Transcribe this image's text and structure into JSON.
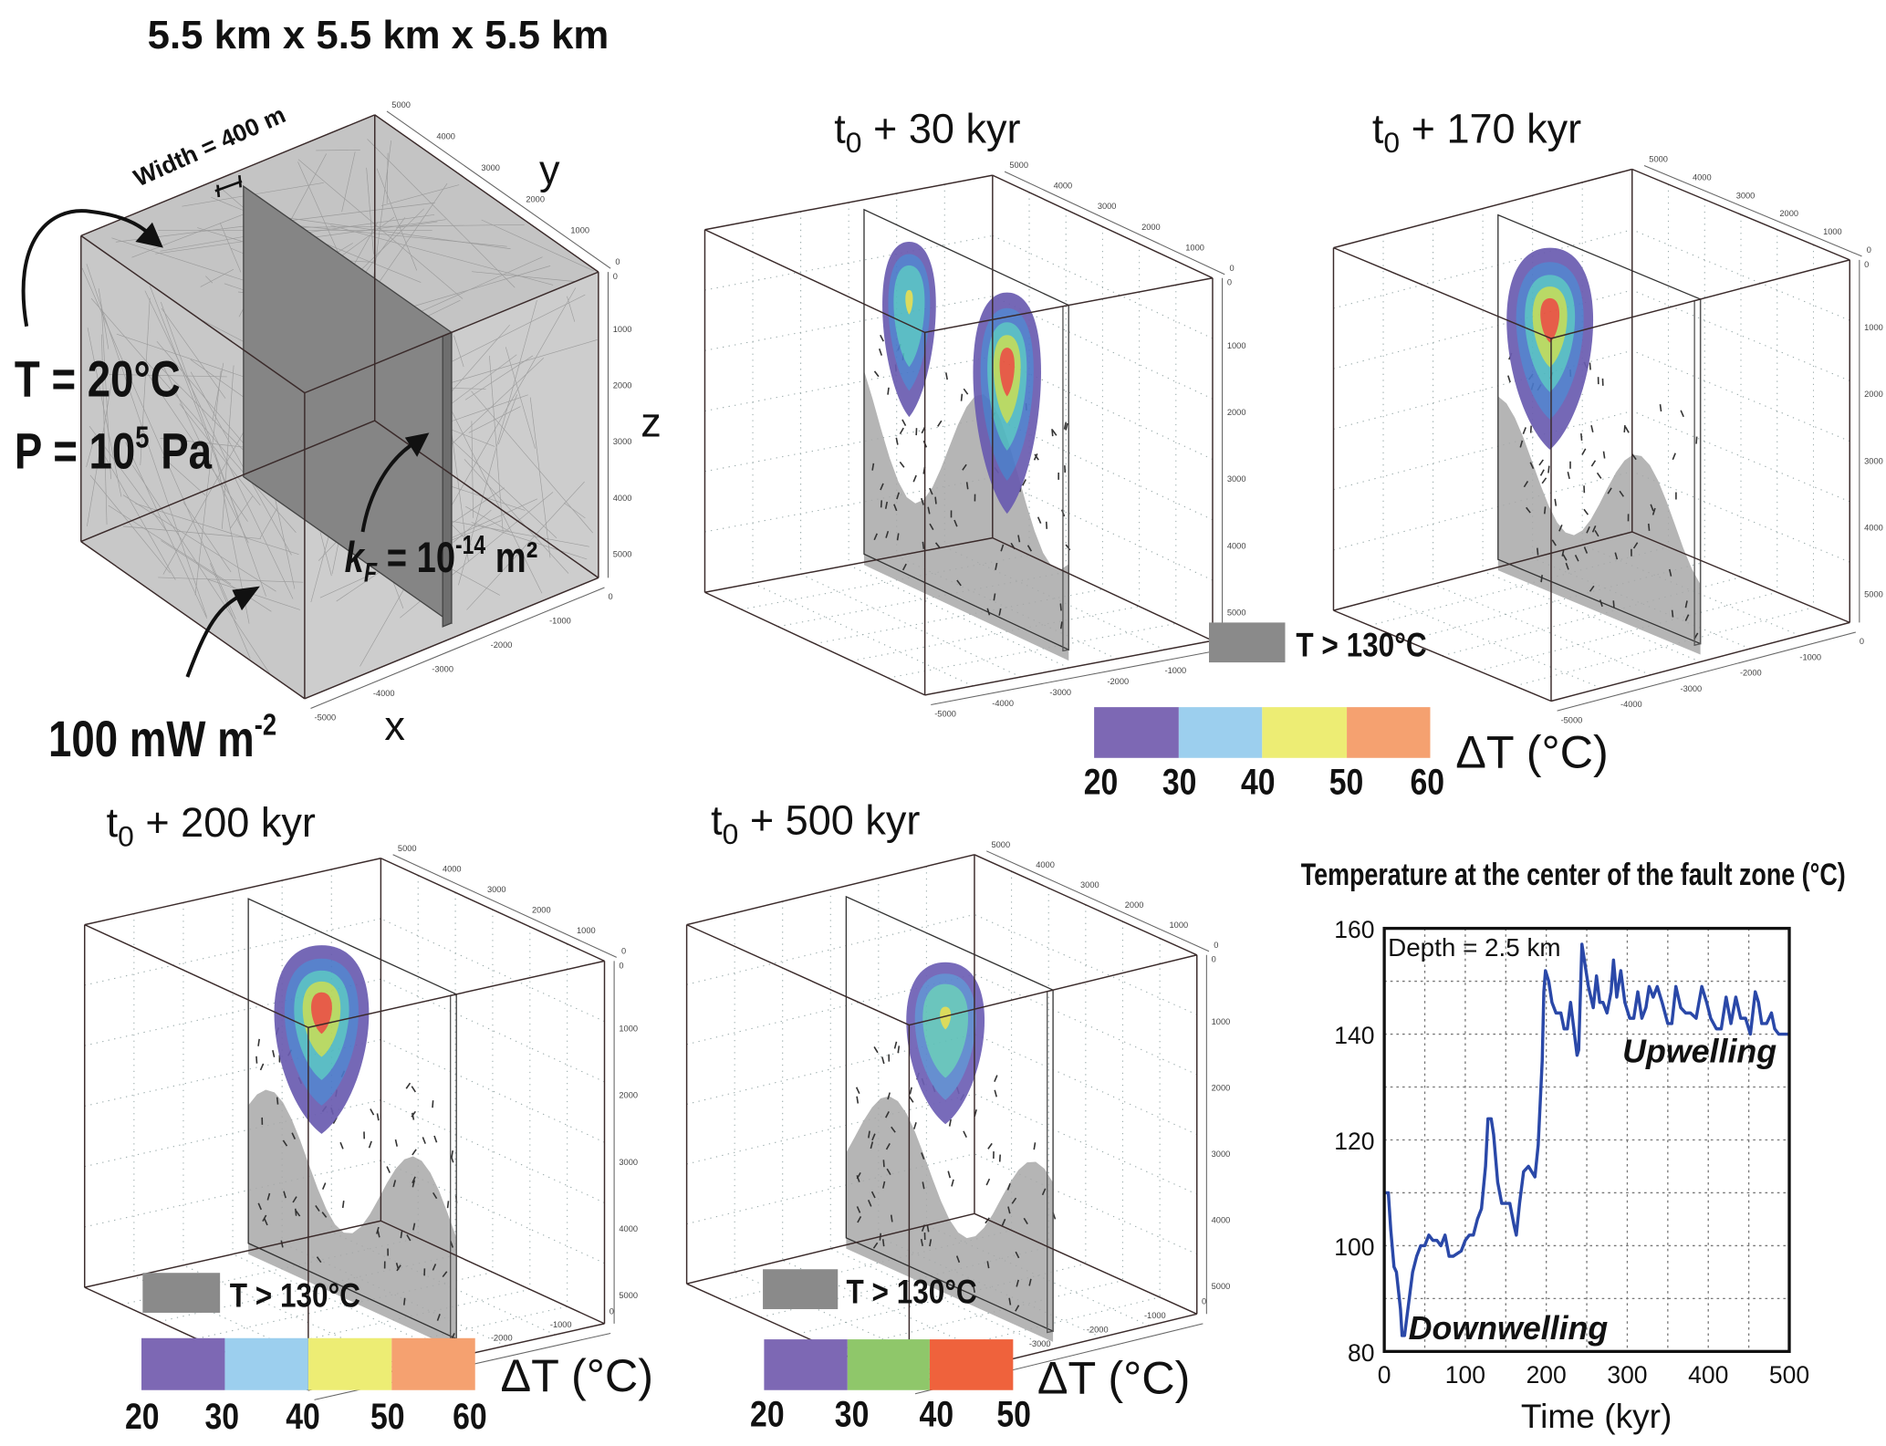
{
  "setup_panel": {
    "title": "5.5 km x 5.5 km x 5.5 km",
    "width_label": "Width = 400 m",
    "temperature": "T = 20°C",
    "pressure_base": "P = 10",
    "pressure_exp": "5",
    "pressure_unit": " Pa",
    "permeability_base": "k",
    "permeability_sub": "F",
    "permeability_mid": " = 10",
    "permeability_exp": "-14",
    "permeability_unit": " m²",
    "heat_flux_base": "100 mW m",
    "heat_flux_exp": "-2",
    "axis_x": "x",
    "axis_y": "y",
    "axis_z": "z"
  },
  "cube_ticks": {
    "y": [
      "5000",
      "4000",
      "3000",
      "2000",
      "1000",
      "0"
    ],
    "z": [
      "0",
      "1000",
      "2000",
      "3000",
      "4000",
      "5000"
    ],
    "x": [
      "0",
      "-1000",
      "-2000",
      "-3000",
      "-4000",
      "-5000"
    ]
  },
  "snapshots": [
    {
      "t": "t",
      "sub": "0",
      "rest": " + 30 kyr"
    },
    {
      "t": "t",
      "sub": "0",
      "rest": " + 170 kyr"
    },
    {
      "t": "t",
      "sub": "0",
      "rest": " + 200 kyr"
    },
    {
      "t": "t",
      "sub": "0",
      "rest": " + 500 kyr"
    }
  ],
  "legends": [
    {
      "threshold": "T > 130°C",
      "title": "ΔT  (°C)",
      "ticks": [
        "20",
        "30",
        "40",
        "50",
        "60"
      ],
      "colors": [
        "#7d68b4",
        "#9ccfee",
        "#eded74",
        "#f5a170"
      ]
    },
    {
      "threshold": "T > 130°C",
      "title": "ΔT  (°C)",
      "ticks": [
        "20",
        "30",
        "40",
        "50",
        "60"
      ],
      "colors": [
        "#7d68b4",
        "#9ccfee",
        "#eded74",
        "#f5a170"
      ]
    },
    {
      "threshold": "T > 130°C",
      "title": "ΔT  (°C)",
      "ticks": [
        "20",
        "30",
        "40",
        "50"
      ],
      "colors": [
        "#7d68b4",
        "#8fc76a",
        "#ef623c"
      ]
    }
  ],
  "chart_data": {
    "type": "line",
    "title": "Temperature at the center of the fault zone (°C)",
    "xlabel": "Time  (kyr)",
    "ylabel": "",
    "xlim": [
      0,
      500
    ],
    "ylim": [
      80,
      160
    ],
    "xticks": [
      0,
      100,
      200,
      300,
      400,
      500
    ],
    "yticks": [
      80,
      100,
      120,
      140,
      160
    ],
    "grid": true,
    "line_color": "#2a48a8",
    "annotations": [
      "Depth = 2.5 km",
      "Upwelling",
      "Downwelling"
    ],
    "series": [
      {
        "x": [
          0,
          5,
          8,
          12,
          15,
          20,
          22,
          25,
          30,
          35,
          40,
          45,
          50,
          55,
          60,
          65,
          70,
          75,
          80,
          85,
          95,
          100,
          105,
          110,
          115,
          120,
          125,
          128,
          132,
          135,
          140,
          145,
          150,
          155,
          160,
          163,
          167,
          172,
          178,
          182,
          186,
          190,
          195,
          197,
          199,
          203,
          207,
          212,
          218,
          222,
          226,
          230,
          234,
          238,
          240,
          244,
          248,
          252,
          258,
          262,
          266,
          270,
          275,
          280,
          283,
          287,
          292,
          297,
          303,
          308,
          313,
          318,
          323,
          327,
          332,
          337,
          343,
          350,
          355,
          360,
          366,
          372,
          378,
          385,
          392,
          398,
          403,
          410,
          416,
          422,
          428,
          434,
          440,
          446,
          452,
          458,
          462,
          466,
          472,
          478,
          482,
          487,
          500
        ],
        "y": [
          110,
          110,
          103,
          96,
          95,
          88,
          83,
          83,
          89,
          95,
          98,
          100,
          100,
          102,
          101,
          101,
          100,
          102,
          98,
          98,
          99,
          101,
          102,
          102,
          105,
          107,
          115,
          124,
          124,
          121,
          112,
          108,
          108,
          108,
          104,
          102,
          108,
          114,
          115,
          114,
          113,
          119,
          135,
          148,
          152,
          150,
          146,
          144,
          144,
          141,
          141,
          146,
          141,
          136,
          137,
          157,
          153,
          149,
          145,
          151,
          146,
          146,
          144,
          148,
          154,
          147,
          152,
          146,
          143,
          143,
          148,
          143,
          145,
          149,
          147,
          149,
          146,
          142,
          142,
          149,
          145,
          144,
          144,
          143,
          149,
          146,
          143,
          141,
          141,
          147,
          142,
          147,
          143,
          143,
          140,
          148,
          146,
          142,
          142,
          144,
          141,
          140,
          140
        ]
      }
    ]
  }
}
